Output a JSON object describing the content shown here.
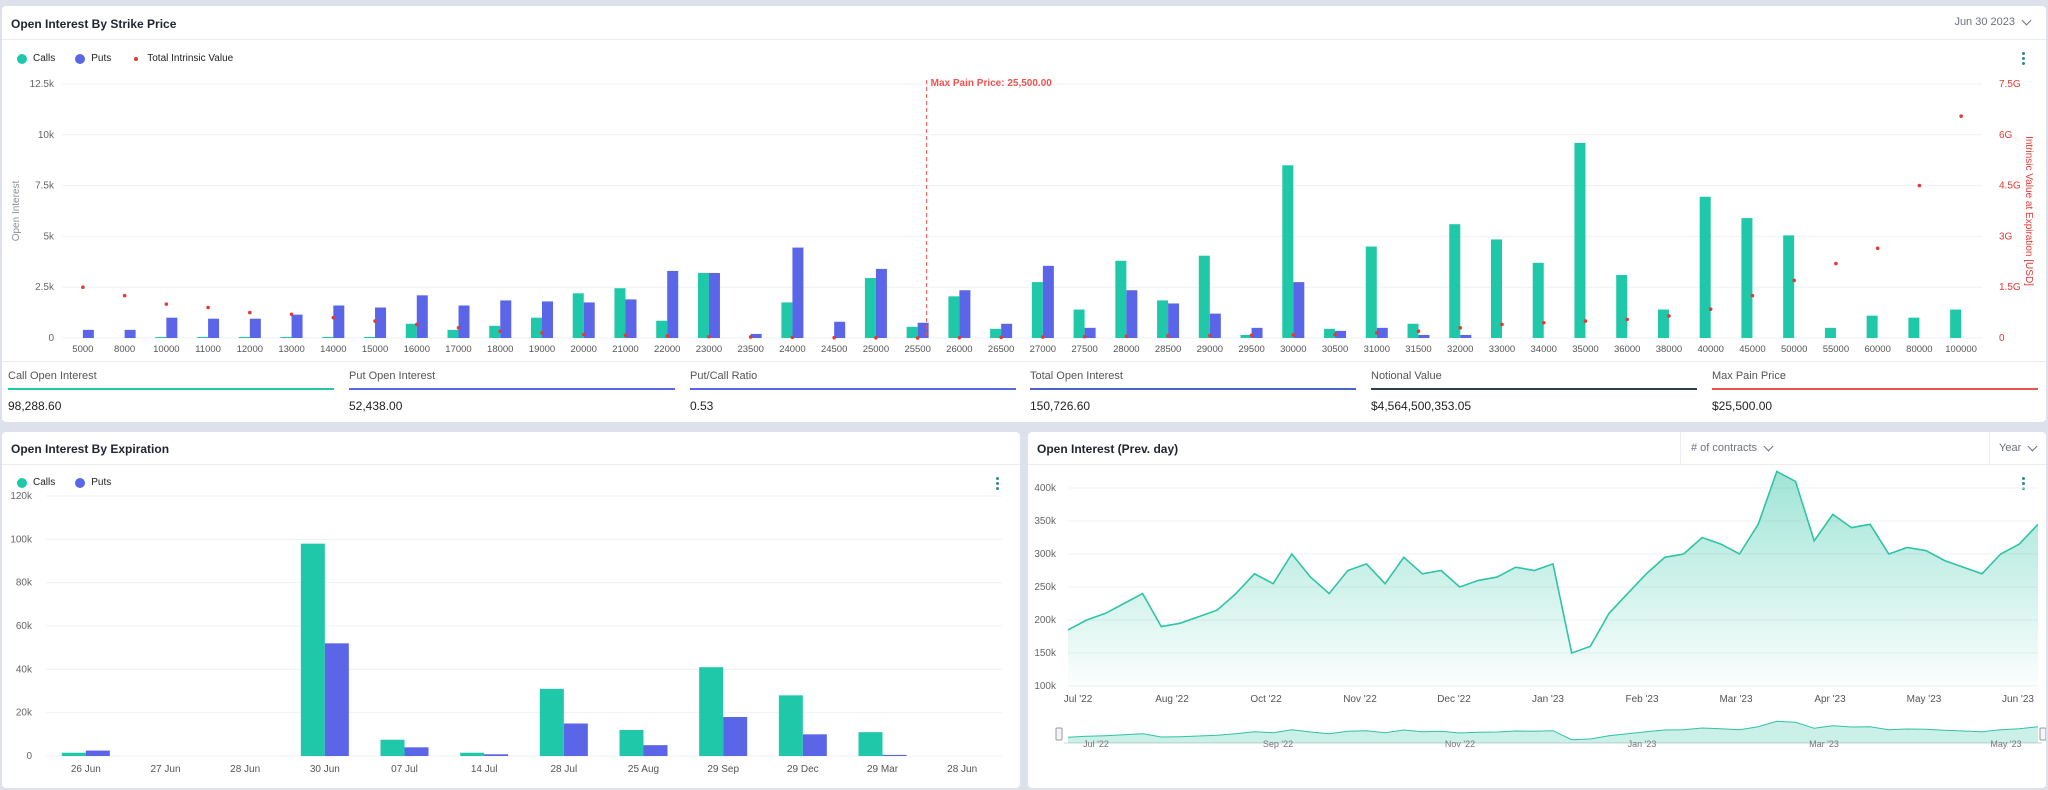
{
  "top_panel": {
    "title": "Open Interest By Strike Price",
    "date_selector": "Jun 30 2023",
    "legend": {
      "calls": "Calls",
      "puts": "Puts",
      "intrinsic": "Total Intrinsic Value"
    },
    "max_pain_label": "Max Pain Price: 25,500.00"
  },
  "stats": [
    {
      "label": "Call Open Interest",
      "value": "98,288.60",
      "color": "#1fc8a9"
    },
    {
      "label": "Put Open Interest",
      "value": "52,438.00",
      "color": "#5b65e8"
    },
    {
      "label": "Put/Call Ratio",
      "value": "0.53",
      "color": "#5b65e8"
    },
    {
      "label": "Total Open Interest",
      "value": "150,726.60",
      "color": "#4a63c9"
    },
    {
      "label": "Notional Value",
      "value": "$4,564,500,353.05",
      "color": "#2d3e52"
    },
    {
      "label": "Max Pain Price",
      "value": "$25,500.00",
      "color": "#ef5350"
    }
  ],
  "bottom_left": {
    "title": "Open Interest By Expiration",
    "legend": {
      "calls": "Calls",
      "puts": "Puts"
    }
  },
  "bottom_right": {
    "title": "Open Interest (Prev. day)",
    "dropdown_contracts": "# of contracts",
    "dropdown_period": "Year"
  },
  "colors": {
    "calls": "#1fc8a9",
    "puts": "#5b65e8",
    "intrinsic": "#e53935",
    "area": "#2ec4a5"
  },
  "chart_data": [
    {
      "type": "bar",
      "title": "Open Interest By Strike Price",
      "ylabel": "Open Interest",
      "y2label": "Intrinsic Value at Expiration [USD]",
      "ylim": [
        0,
        12500
      ],
      "y2lim": [
        0,
        7500000000
      ],
      "yticks": [
        "0",
        "2.5k",
        "5k",
        "7.5k",
        "10k",
        "12.5k"
      ],
      "y2ticks": [
        "0",
        "1.5G",
        "3G",
        "4.5G",
        "6G",
        "7.5G"
      ],
      "max_pain": "25500",
      "categories": [
        "5000",
        "8000",
        "10000",
        "11000",
        "12000",
        "13000",
        "14000",
        "15000",
        "16000",
        "17000",
        "18000",
        "19000",
        "20000",
        "21000",
        "22000",
        "23000",
        "23500",
        "24000",
        "24500",
        "25000",
        "25500",
        "26000",
        "26500",
        "27000",
        "27500",
        "28000",
        "28500",
        "29000",
        "29500",
        "30000",
        "30500",
        "31000",
        "31500",
        "32000",
        "33000",
        "34000",
        "35000",
        "36000",
        "38000",
        "40000",
        "45000",
        "50000",
        "55000",
        "60000",
        "80000",
        "100000"
      ],
      "series": [
        {
          "name": "Calls",
          "values": [
            0,
            0,
            50,
            50,
            50,
            50,
            50,
            50,
            700,
            400,
            600,
            1000,
            2200,
            2450,
            850,
            3200,
            0,
            1750,
            0,
            2950,
            550,
            2050,
            450,
            2750,
            1400,
            3800,
            1850,
            4050,
            150,
            8500,
            450,
            4500,
            700,
            5600,
            4850,
            3700,
            9600,
            3100,
            1400,
            6950,
            5900,
            5050,
            500,
            1100,
            1000,
            1400
          ]
        },
        {
          "name": "Puts",
          "values": [
            400,
            400,
            1000,
            950,
            950,
            1150,
            1600,
            1500,
            2100,
            1600,
            1850,
            1800,
            1750,
            1900,
            3300,
            3200,
            200,
            4450,
            800,
            3400,
            750,
            2350,
            700,
            3550,
            500,
            2350,
            1700,
            1200,
            500,
            2750,
            350,
            500,
            150,
            150,
            0,
            0,
            0,
            0,
            0,
            0,
            0,
            0,
            0,
            0,
            0,
            0
          ]
        },
        {
          "name": "Total Intrinsic Value",
          "values": [
            1500000000,
            1250000000,
            1000000000,
            900000000,
            750000000,
            700000000,
            600000000,
            500000000,
            400000000,
            300000000,
            200000000,
            150000000,
            100000000,
            80000000,
            60000000,
            40000000,
            30000000,
            20000000,
            10000000,
            5000000,
            0,
            10000000,
            20000000,
            30000000,
            40000000,
            50000000,
            60000000,
            70000000,
            80000000,
            90000000,
            100000000,
            150000000,
            200000000,
            300000000,
            400000000,
            450000000,
            500000000,
            550000000,
            650000000,
            850000000,
            1250000000,
            1700000000,
            2200000000,
            2650000000,
            4500000000,
            6550000000
          ]
        }
      ]
    },
    {
      "type": "bar",
      "title": "Open Interest By Expiration",
      "ylim": [
        0,
        120000
      ],
      "yticks": [
        "0",
        "20k",
        "40k",
        "60k",
        "80k",
        "100k",
        "120k"
      ],
      "categories": [
        "26 Jun",
        "27 Jun",
        "28 Jun",
        "30 Jun",
        "07 Jul",
        "14 Jul",
        "28 Jul",
        "25 Aug",
        "29 Sep",
        "29 Dec",
        "29 Mar",
        "28 Jun"
      ],
      "series": [
        {
          "name": "Calls",
          "values": [
            1500,
            0,
            0,
            98000,
            7500,
            1500,
            31000,
            12000,
            41000,
            28000,
            11000,
            0
          ]
        },
        {
          "name": "Puts",
          "values": [
            2500,
            0,
            0,
            52000,
            4000,
            800,
            15000,
            5000,
            18000,
            10000,
            500,
            0
          ]
        }
      ]
    },
    {
      "type": "area",
      "title": "Open Interest (Prev. day)",
      "ylim": [
        100000,
        400000
      ],
      "yticks": [
        "100k",
        "150k",
        "200k",
        "250k",
        "300k",
        "350k",
        "400k"
      ],
      "xticks": [
        "Jul '22",
        "Aug '22",
        "Oct '22",
        "Nov '22",
        "Dec '22",
        "Jan '23",
        "Feb '23",
        "Mar '23",
        "Apr '23",
        "May '23",
        "Jun '23"
      ],
      "navigator_ticks": [
        "Jul '22",
        "Sep '22",
        "Nov '22",
        "Jan '23",
        "Mar '23",
        "May '23"
      ],
      "x": [
        "2022-07-01",
        "2022-07-08",
        "2022-07-15",
        "2022-07-22",
        "2022-07-29",
        "2022-08-05",
        "2022-08-12",
        "2022-08-19",
        "2022-08-26",
        "2022-09-02",
        "2022-09-09",
        "2022-09-16",
        "2022-09-23",
        "2022-09-30",
        "2022-10-07",
        "2022-10-14",
        "2022-10-21",
        "2022-10-28",
        "2022-11-04",
        "2022-11-11",
        "2022-11-18",
        "2022-11-25",
        "2022-12-02",
        "2022-12-09",
        "2022-12-16",
        "2022-12-23",
        "2022-12-30",
        "2023-01-06",
        "2023-01-13",
        "2023-01-20",
        "2023-01-27",
        "2023-02-03",
        "2023-02-10",
        "2023-02-17",
        "2023-02-24",
        "2023-03-03",
        "2023-03-10",
        "2023-03-17",
        "2023-03-24",
        "2023-03-31",
        "2023-04-07",
        "2023-04-14",
        "2023-04-21",
        "2023-04-28",
        "2023-05-05",
        "2023-05-12",
        "2023-05-19",
        "2023-05-26",
        "2023-06-02",
        "2023-06-09",
        "2023-06-16",
        "2023-06-23",
        "2023-06-30"
      ],
      "values": [
        185000,
        200000,
        210000,
        225000,
        240000,
        190000,
        195000,
        205000,
        215000,
        240000,
        270000,
        255000,
        300000,
        265000,
        240000,
        275000,
        285000,
        255000,
        295000,
        270000,
        275000,
        250000,
        260000,
        265000,
        280000,
        275000,
        285000,
        150000,
        160000,
        210000,
        240000,
        270000,
        295000,
        300000,
        325000,
        315000,
        300000,
        345000,
        425000,
        410000,
        320000,
        360000,
        340000,
        345000,
        300000,
        310000,
        305000,
        290000,
        280000,
        270000,
        300000,
        315000,
        345000
      ]
    }
  ]
}
